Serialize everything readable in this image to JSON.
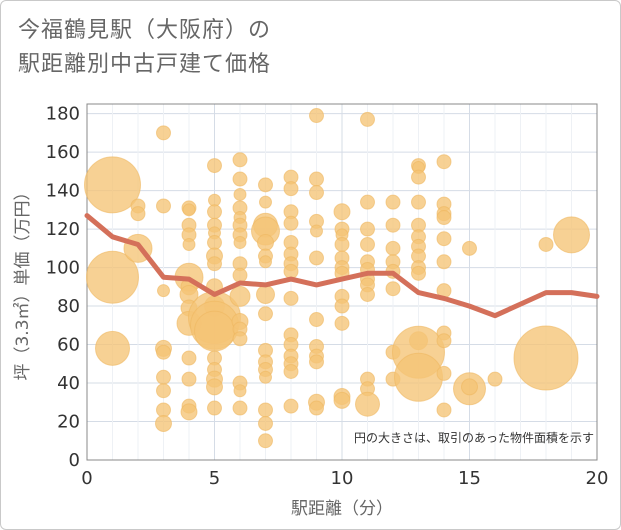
{
  "chart_data": {
    "type": "scatter",
    "title": "今福鶴見駅（大阪府）の\n駅距離別中古戸建て価格",
    "xlabel": "駅距離（分）",
    "ylabel": "坪（3.3㎡）単価（万円）",
    "note": "円の大きさは、取引のあった物件面積を示す",
    "xlim": [
      0,
      20
    ],
    "ylim": [
      0,
      185
    ],
    "xticks": [
      0,
      5,
      10,
      15,
      20
    ],
    "yticks": [
      0,
      20,
      40,
      60,
      80,
      100,
      120,
      140,
      160,
      180
    ],
    "grid": true,
    "colors": {
      "bubble": "#f5c476",
      "line": "#d4705a",
      "grid": "#d5dce6",
      "text": "#666666"
    },
    "bubbles": [
      {
        "x": 1,
        "y": 143,
        "s": 28
      },
      {
        "x": 1,
        "y": 95,
        "s": 26
      },
      {
        "x": 1,
        "y": 58,
        "s": 17
      },
      {
        "x": 2,
        "y": 132,
        "s": 7
      },
      {
        "x": 2,
        "y": 128,
        "s": 7
      },
      {
        "x": 2,
        "y": 110,
        "s": 14
      },
      {
        "x": 3,
        "y": 170,
        "s": 7
      },
      {
        "x": 3,
        "y": 132,
        "s": 7
      },
      {
        "x": 3,
        "y": 88,
        "s": 6
      },
      {
        "x": 3,
        "y": 58,
        "s": 8
      },
      {
        "x": 3,
        "y": 56,
        "s": 7
      },
      {
        "x": 3,
        "y": 43,
        "s": 7
      },
      {
        "x": 3,
        "y": 36,
        "s": 7
      },
      {
        "x": 3,
        "y": 26,
        "s": 7
      },
      {
        "x": 3,
        "y": 19,
        "s": 8
      },
      {
        "x": 4,
        "y": 131,
        "s": 7
      },
      {
        "x": 4,
        "y": 130,
        "s": 6
      },
      {
        "x": 4,
        "y": 122,
        "s": 7
      },
      {
        "x": 4,
        "y": 117,
        "s": 7
      },
      {
        "x": 4,
        "y": 112,
        "s": 6
      },
      {
        "x": 4,
        "y": 95,
        "s": 14
      },
      {
        "x": 4,
        "y": 90,
        "s": 8
      },
      {
        "x": 4,
        "y": 86,
        "s": 9
      },
      {
        "x": 4,
        "y": 79,
        "s": 8
      },
      {
        "x": 4,
        "y": 71,
        "s": 12
      },
      {
        "x": 4,
        "y": 53,
        "s": 7
      },
      {
        "x": 4,
        "y": 42,
        "s": 7
      },
      {
        "x": 4,
        "y": 28,
        "s": 7
      },
      {
        "x": 4,
        "y": 25,
        "s": 8
      },
      {
        "x": 5,
        "y": 153,
        "s": 7
      },
      {
        "x": 5,
        "y": 135,
        "s": 6
      },
      {
        "x": 5,
        "y": 129,
        "s": 7
      },
      {
        "x": 5,
        "y": 122,
        "s": 7
      },
      {
        "x": 5,
        "y": 118,
        "s": 6
      },
      {
        "x": 5,
        "y": 113,
        "s": 7
      },
      {
        "x": 5,
        "y": 106,
        "s": 8
      },
      {
        "x": 5,
        "y": 102,
        "s": 7
      },
      {
        "x": 5,
        "y": 90,
        "s": 8
      },
      {
        "x": 5,
        "y": 80,
        "s": 10
      },
      {
        "x": 5,
        "y": 74,
        "s": 26
      },
      {
        "x": 5,
        "y": 70,
        "s": 24
      },
      {
        "x": 5,
        "y": 67,
        "s": 20
      },
      {
        "x": 5,
        "y": 53,
        "s": 7
      },
      {
        "x": 5,
        "y": 47,
        "s": 7
      },
      {
        "x": 5,
        "y": 42,
        "s": 8
      },
      {
        "x": 5,
        "y": 38,
        "s": 8
      },
      {
        "x": 5,
        "y": 27,
        "s": 7
      },
      {
        "x": 6,
        "y": 156,
        "s": 7
      },
      {
        "x": 6,
        "y": 146,
        "s": 7
      },
      {
        "x": 6,
        "y": 138,
        "s": 6
      },
      {
        "x": 6,
        "y": 131,
        "s": 7
      },
      {
        "x": 6,
        "y": 126,
        "s": 6
      },
      {
        "x": 6,
        "y": 122,
        "s": 7
      },
      {
        "x": 6,
        "y": 117,
        "s": 7
      },
      {
        "x": 6,
        "y": 113,
        "s": 6
      },
      {
        "x": 6,
        "y": 102,
        "s": 7
      },
      {
        "x": 6,
        "y": 96,
        "s": 7
      },
      {
        "x": 6,
        "y": 85,
        "s": 10
      },
      {
        "x": 6,
        "y": 72,
        "s": 8
      },
      {
        "x": 6,
        "y": 68,
        "s": 7
      },
      {
        "x": 6,
        "y": 63,
        "s": 7
      },
      {
        "x": 6,
        "y": 40,
        "s": 7
      },
      {
        "x": 6,
        "y": 36,
        "s": 6
      },
      {
        "x": 6,
        "y": 27,
        "s": 7
      },
      {
        "x": 7,
        "y": 143,
        "s": 7
      },
      {
        "x": 7,
        "y": 134,
        "s": 6
      },
      {
        "x": 7,
        "y": 122,
        "s": 12
      },
      {
        "x": 7,
        "y": 119,
        "s": 14
      },
      {
        "x": 7,
        "y": 113,
        "s": 8
      },
      {
        "x": 7,
        "y": 106,
        "s": 7
      },
      {
        "x": 7,
        "y": 103,
        "s": 6
      },
      {
        "x": 7,
        "y": 86,
        "s": 9
      },
      {
        "x": 7,
        "y": 76,
        "s": 7
      },
      {
        "x": 7,
        "y": 57,
        "s": 7
      },
      {
        "x": 7,
        "y": 51,
        "s": 7
      },
      {
        "x": 7,
        "y": 47,
        "s": 7
      },
      {
        "x": 7,
        "y": 43,
        "s": 6
      },
      {
        "x": 7,
        "y": 26,
        "s": 7
      },
      {
        "x": 7,
        "y": 19,
        "s": 7
      },
      {
        "x": 7,
        "y": 10,
        "s": 7
      },
      {
        "x": 8,
        "y": 147,
        "s": 7
      },
      {
        "x": 8,
        "y": 141,
        "s": 7
      },
      {
        "x": 8,
        "y": 129,
        "s": 7
      },
      {
        "x": 8,
        "y": 123,
        "s": 7
      },
      {
        "x": 8,
        "y": 113,
        "s": 7
      },
      {
        "x": 8,
        "y": 107,
        "s": 7
      },
      {
        "x": 8,
        "y": 102,
        "s": 7
      },
      {
        "x": 8,
        "y": 98,
        "s": 7
      },
      {
        "x": 8,
        "y": 84,
        "s": 7
      },
      {
        "x": 8,
        "y": 65,
        "s": 7
      },
      {
        "x": 8,
        "y": 60,
        "s": 7
      },
      {
        "x": 8,
        "y": 54,
        "s": 7
      },
      {
        "x": 8,
        "y": 50,
        "s": 7
      },
      {
        "x": 8,
        "y": 46,
        "s": 7
      },
      {
        "x": 8,
        "y": 28,
        "s": 7
      },
      {
        "x": 9,
        "y": 179,
        "s": 7
      },
      {
        "x": 9,
        "y": 146,
        "s": 7
      },
      {
        "x": 9,
        "y": 139,
        "s": 7
      },
      {
        "x": 9,
        "y": 124,
        "s": 7
      },
      {
        "x": 9,
        "y": 119,
        "s": 6
      },
      {
        "x": 9,
        "y": 105,
        "s": 7
      },
      {
        "x": 9,
        "y": 73,
        "s": 7
      },
      {
        "x": 9,
        "y": 59,
        "s": 7
      },
      {
        "x": 9,
        "y": 54,
        "s": 7
      },
      {
        "x": 9,
        "y": 51,
        "s": 7
      },
      {
        "x": 9,
        "y": 30,
        "s": 8
      },
      {
        "x": 9,
        "y": 27,
        "s": 7
      },
      {
        "x": 10,
        "y": 129,
        "s": 8
      },
      {
        "x": 10,
        "y": 120,
        "s": 7
      },
      {
        "x": 10,
        "y": 117,
        "s": 6
      },
      {
        "x": 10,
        "y": 112,
        "s": 7
      },
      {
        "x": 10,
        "y": 105,
        "s": 7
      },
      {
        "x": 10,
        "y": 100,
        "s": 7
      },
      {
        "x": 10,
        "y": 97,
        "s": 7
      },
      {
        "x": 10,
        "y": 85,
        "s": 7
      },
      {
        "x": 10,
        "y": 80,
        "s": 7
      },
      {
        "x": 10,
        "y": 71,
        "s": 7
      },
      {
        "x": 10,
        "y": 33,
        "s": 8
      },
      {
        "x": 10,
        "y": 31,
        "s": 8
      },
      {
        "x": 11,
        "y": 177,
        "s": 7
      },
      {
        "x": 11,
        "y": 134,
        "s": 7
      },
      {
        "x": 11,
        "y": 120,
        "s": 7
      },
      {
        "x": 11,
        "y": 112,
        "s": 7
      },
      {
        "x": 11,
        "y": 103,
        "s": 7
      },
      {
        "x": 11,
        "y": 99,
        "s": 7
      },
      {
        "x": 11,
        "y": 94,
        "s": 7
      },
      {
        "x": 11,
        "y": 91,
        "s": 7
      },
      {
        "x": 11,
        "y": 86,
        "s": 7
      },
      {
        "x": 11,
        "y": 42,
        "s": 7
      },
      {
        "x": 11,
        "y": 37,
        "s": 7
      },
      {
        "x": 11,
        "y": 29,
        "s": 12
      },
      {
        "x": 12,
        "y": 134,
        "s": 7
      },
      {
        "x": 12,
        "y": 122,
        "s": 7
      },
      {
        "x": 12,
        "y": 110,
        "s": 7
      },
      {
        "x": 12,
        "y": 103,
        "s": 7
      },
      {
        "x": 12,
        "y": 98,
        "s": 7
      },
      {
        "x": 12,
        "y": 89,
        "s": 7
      },
      {
        "x": 12,
        "y": 56,
        "s": 7
      },
      {
        "x": 12,
        "y": 42,
        "s": 7
      },
      {
        "x": 13,
        "y": 153,
        "s": 7
      },
      {
        "x": 13,
        "y": 152,
        "s": 6
      },
      {
        "x": 13,
        "y": 147,
        "s": 7
      },
      {
        "x": 13,
        "y": 134,
        "s": 7
      },
      {
        "x": 13,
        "y": 122,
        "s": 7
      },
      {
        "x": 13,
        "y": 116,
        "s": 7
      },
      {
        "x": 13,
        "y": 111,
        "s": 7
      },
      {
        "x": 13,
        "y": 106,
        "s": 7
      },
      {
        "x": 13,
        "y": 100,
        "s": 7
      },
      {
        "x": 13,
        "y": 97,
        "s": 7
      },
      {
        "x": 13,
        "y": 62,
        "s": 9
      },
      {
        "x": 13,
        "y": 56,
        "s": 26
      },
      {
        "x": 13,
        "y": 43,
        "s": 24
      },
      {
        "x": 14,
        "y": 155,
        "s": 7
      },
      {
        "x": 14,
        "y": 133,
        "s": 7
      },
      {
        "x": 14,
        "y": 128,
        "s": 7
      },
      {
        "x": 14,
        "y": 126,
        "s": 7
      },
      {
        "x": 14,
        "y": 115,
        "s": 7
      },
      {
        "x": 14,
        "y": 103,
        "s": 7
      },
      {
        "x": 14,
        "y": 88,
        "s": 7
      },
      {
        "x": 14,
        "y": 66,
        "s": 7
      },
      {
        "x": 14,
        "y": 62,
        "s": 7
      },
      {
        "x": 14,
        "y": 45,
        "s": 7
      },
      {
        "x": 14,
        "y": 26,
        "s": 7
      },
      {
        "x": 15,
        "y": 110,
        "s": 7
      },
      {
        "x": 15,
        "y": 37,
        "s": 16
      },
      {
        "x": 15,
        "y": 38,
        "s": 8
      },
      {
        "x": 16,
        "y": 42,
        "s": 7
      },
      {
        "x": 18,
        "y": 112,
        "s": 7
      },
      {
        "x": 18,
        "y": 53,
        "s": 32
      },
      {
        "x": 19,
        "y": 117,
        "s": 18
      }
    ],
    "series": [
      {
        "x": [
          0,
          1,
          2,
          3,
          4,
          5,
          6,
          7,
          8,
          9,
          10,
          11,
          12,
          13,
          14,
          15,
          16,
          17,
          18,
          19,
          20
        ],
        "values": [
          127,
          116,
          112,
          95,
          94,
          86,
          92,
          91,
          94,
          91,
          94,
          97,
          97,
          87,
          84,
          80,
          75,
          81,
          87,
          87,
          85
        ]
      }
    ]
  }
}
